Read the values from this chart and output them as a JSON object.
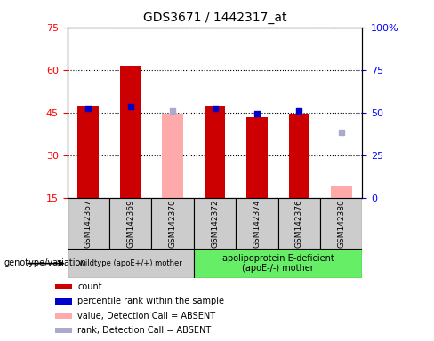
{
  "title": "GDS3671 / 1442317_at",
  "samples": [
    "GSM142367",
    "GSM142369",
    "GSM142370",
    "GSM142372",
    "GSM142374",
    "GSM142376",
    "GSM142380"
  ],
  "count_values": [
    47.5,
    61.5,
    null,
    47.5,
    43.5,
    44.5,
    null
  ],
  "percentile_values": [
    46.5,
    47.0,
    null,
    46.5,
    44.5,
    45.5,
    null
  ],
  "absent_value_values": [
    null,
    null,
    44.5,
    null,
    null,
    null,
    19.0
  ],
  "absent_rank_values": [
    null,
    null,
    45.5,
    null,
    null,
    null,
    38.0
  ],
  "count_color": "#cc0000",
  "percentile_color": "#0000cc",
  "absent_value_color": "#ffaaaa",
  "absent_rank_color": "#aaaacc",
  "ylim_left": [
    15,
    75
  ],
  "ylim_right": [
    0,
    100
  ],
  "yticks_left": [
    15,
    30,
    45,
    60,
    75
  ],
  "yticks_right": [
    0,
    25,
    50,
    75,
    100
  ],
  "ytick_labels_right": [
    "0",
    "25",
    "50",
    "75",
    "100%"
  ],
  "group1_label": "wildtype (apoE+/+) mother",
  "group2_label": "apolipoprotein E-deficient\n(apoE-/-) mother",
  "group1_color": "#cccccc",
  "group2_color": "#66ee66",
  "genotype_label": "genotype/variation",
  "legend_items": [
    {
      "label": "count",
      "color": "#cc0000"
    },
    {
      "label": "percentile rank within the sample",
      "color": "#0000cc"
    },
    {
      "label": "value, Detection Call = ABSENT",
      "color": "#ffaaaa"
    },
    {
      "label": "rank, Detection Call = ABSENT",
      "color": "#aaaacc"
    }
  ]
}
